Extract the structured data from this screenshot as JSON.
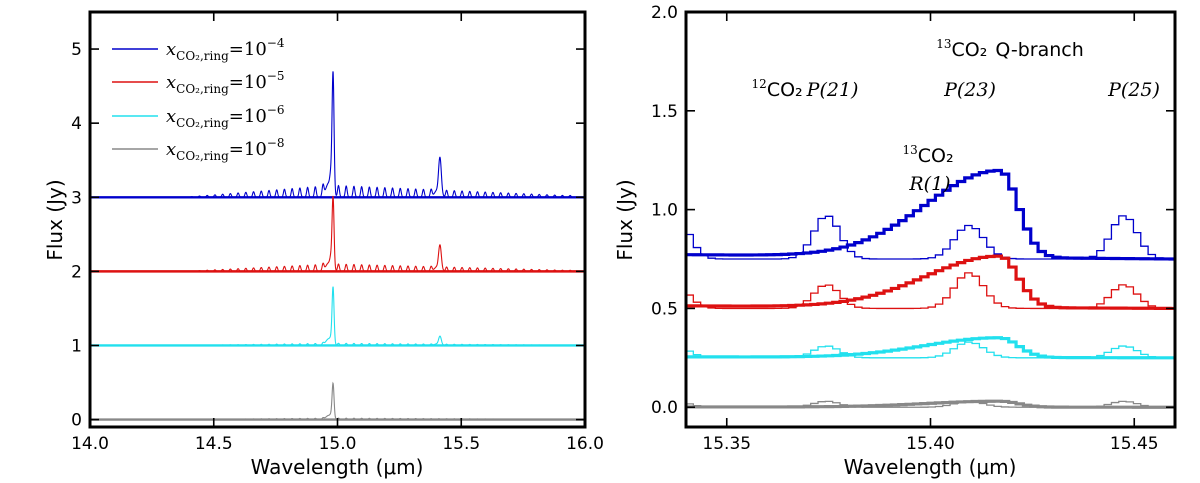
{
  "chart_data": [
    {
      "type": "line",
      "panel": "left",
      "xlabel": "Wavelength (μm)",
      "ylabel": "Flux (Jy)",
      "xlim": [
        14.0,
        16.0
      ],
      "ylim": [
        -0.1,
        5.5
      ],
      "xticks": [
        14.0,
        14.5,
        15.0,
        15.5,
        16.0
      ],
      "xtick_labels": [
        "14.0",
        "14.5",
        "15.0",
        "15.5",
        "16.0"
      ],
      "yticks": [
        0,
        1,
        2,
        3,
        4,
        5
      ],
      "ytick_labels": [
        "0",
        "1",
        "2",
        "3",
        "4",
        "5"
      ],
      "legend_position": "top-left",
      "series": [
        {
          "name": "x_CO2,ring = 10^-4",
          "legend_main": "x",
          "legend_sub": "CO₂,ring",
          "legend_eq": "=10",
          "legend_exp": "−4",
          "color": "#0000cc",
          "offset": 3.0,
          "q_peak": 1.62,
          "p_peak": 0.42,
          "r_amp": 0.16,
          "p_amp": 0.13
        },
        {
          "name": "x_CO2,ring = 10^-5",
          "legend_main": "x",
          "legend_sub": "CO₂,ring",
          "legend_eq": "=10",
          "legend_exp": "−5",
          "color": "#dd1111",
          "offset": 2.0,
          "q_peak": 0.97,
          "p_peak": 0.28,
          "r_amp": 0.1,
          "p_amp": 0.08
        },
        {
          "name": "x_CO2,ring = 10^-6",
          "legend_main": "x",
          "legend_sub": "CO₂,ring",
          "legend_eq": "=10",
          "legend_exp": "−6",
          "color": "#22e0ee",
          "offset": 1.0,
          "q_peak": 0.76,
          "p_peak": 0.1,
          "r_amp": 0.03,
          "p_amp": 0.02
        },
        {
          "name": "x_CO2,ring = 10^-8",
          "legend_main": "x",
          "legend_sub": "CO₂,ring",
          "legend_eq": "=10",
          "legend_exp": "−8",
          "color": "#888888",
          "offset": 0.0,
          "q_peak": 0.47,
          "p_peak": 0.0,
          "r_amp": 0.02,
          "p_amp": 0.0
        }
      ]
    },
    {
      "type": "line",
      "panel": "right",
      "xlabel": "Wavelength (μm)",
      "ylabel": "Flux (Jy)",
      "xlim": [
        15.34,
        15.46
      ],
      "ylim": [
        -0.1,
        2.0
      ],
      "xticks": [
        15.35,
        15.4,
        15.45
      ],
      "xtick_labels": [
        "15.35",
        "15.40",
        "15.45"
      ],
      "yticks": [
        0.0,
        0.5,
        1.0,
        1.5,
        2.0
      ],
      "ytick_labels": [
        "0.0",
        "0.5",
        "1.0",
        "1.5",
        "2.0"
      ],
      "annotations": {
        "q_branch": {
          "sup": "13",
          "species": "CO₂",
          "label": "Q-branch"
        },
        "p21": {
          "sup": "12",
          "species": "CO₂",
          "label": "P(21)"
        },
        "p23": {
          "label": "P(23)"
        },
        "p25": {
          "label": "P(25)"
        },
        "r1": {
          "sup": "13",
          "species": "CO₂",
          "label": "R(1)"
        }
      },
      "series": [
        {
          "name": "x_CO2,ring = 10^-4",
          "color": "#0000cc",
          "baseline": 0.75,
          "peak": 1.19,
          "thin_peak": 0.97,
          "thin_mid": 0.92
        },
        {
          "name": "x_CO2,ring = 10^-5",
          "color": "#dd1111",
          "baseline": 0.5,
          "peak": 0.76,
          "thin_peak": 0.62,
          "thin_mid": 0.68
        },
        {
          "name": "x_CO2,ring = 10^-6",
          "color": "#22e0ee",
          "baseline": 0.25,
          "peak": 0.35,
          "thin_peak": 0.31,
          "thin_mid": 0.33
        },
        {
          "name": "x_CO2,ring = 10^-8",
          "color": "#888888",
          "baseline": 0.0,
          "peak": 0.03,
          "thin_peak": 0.03,
          "thin_mid": 0.03
        }
      ]
    }
  ]
}
